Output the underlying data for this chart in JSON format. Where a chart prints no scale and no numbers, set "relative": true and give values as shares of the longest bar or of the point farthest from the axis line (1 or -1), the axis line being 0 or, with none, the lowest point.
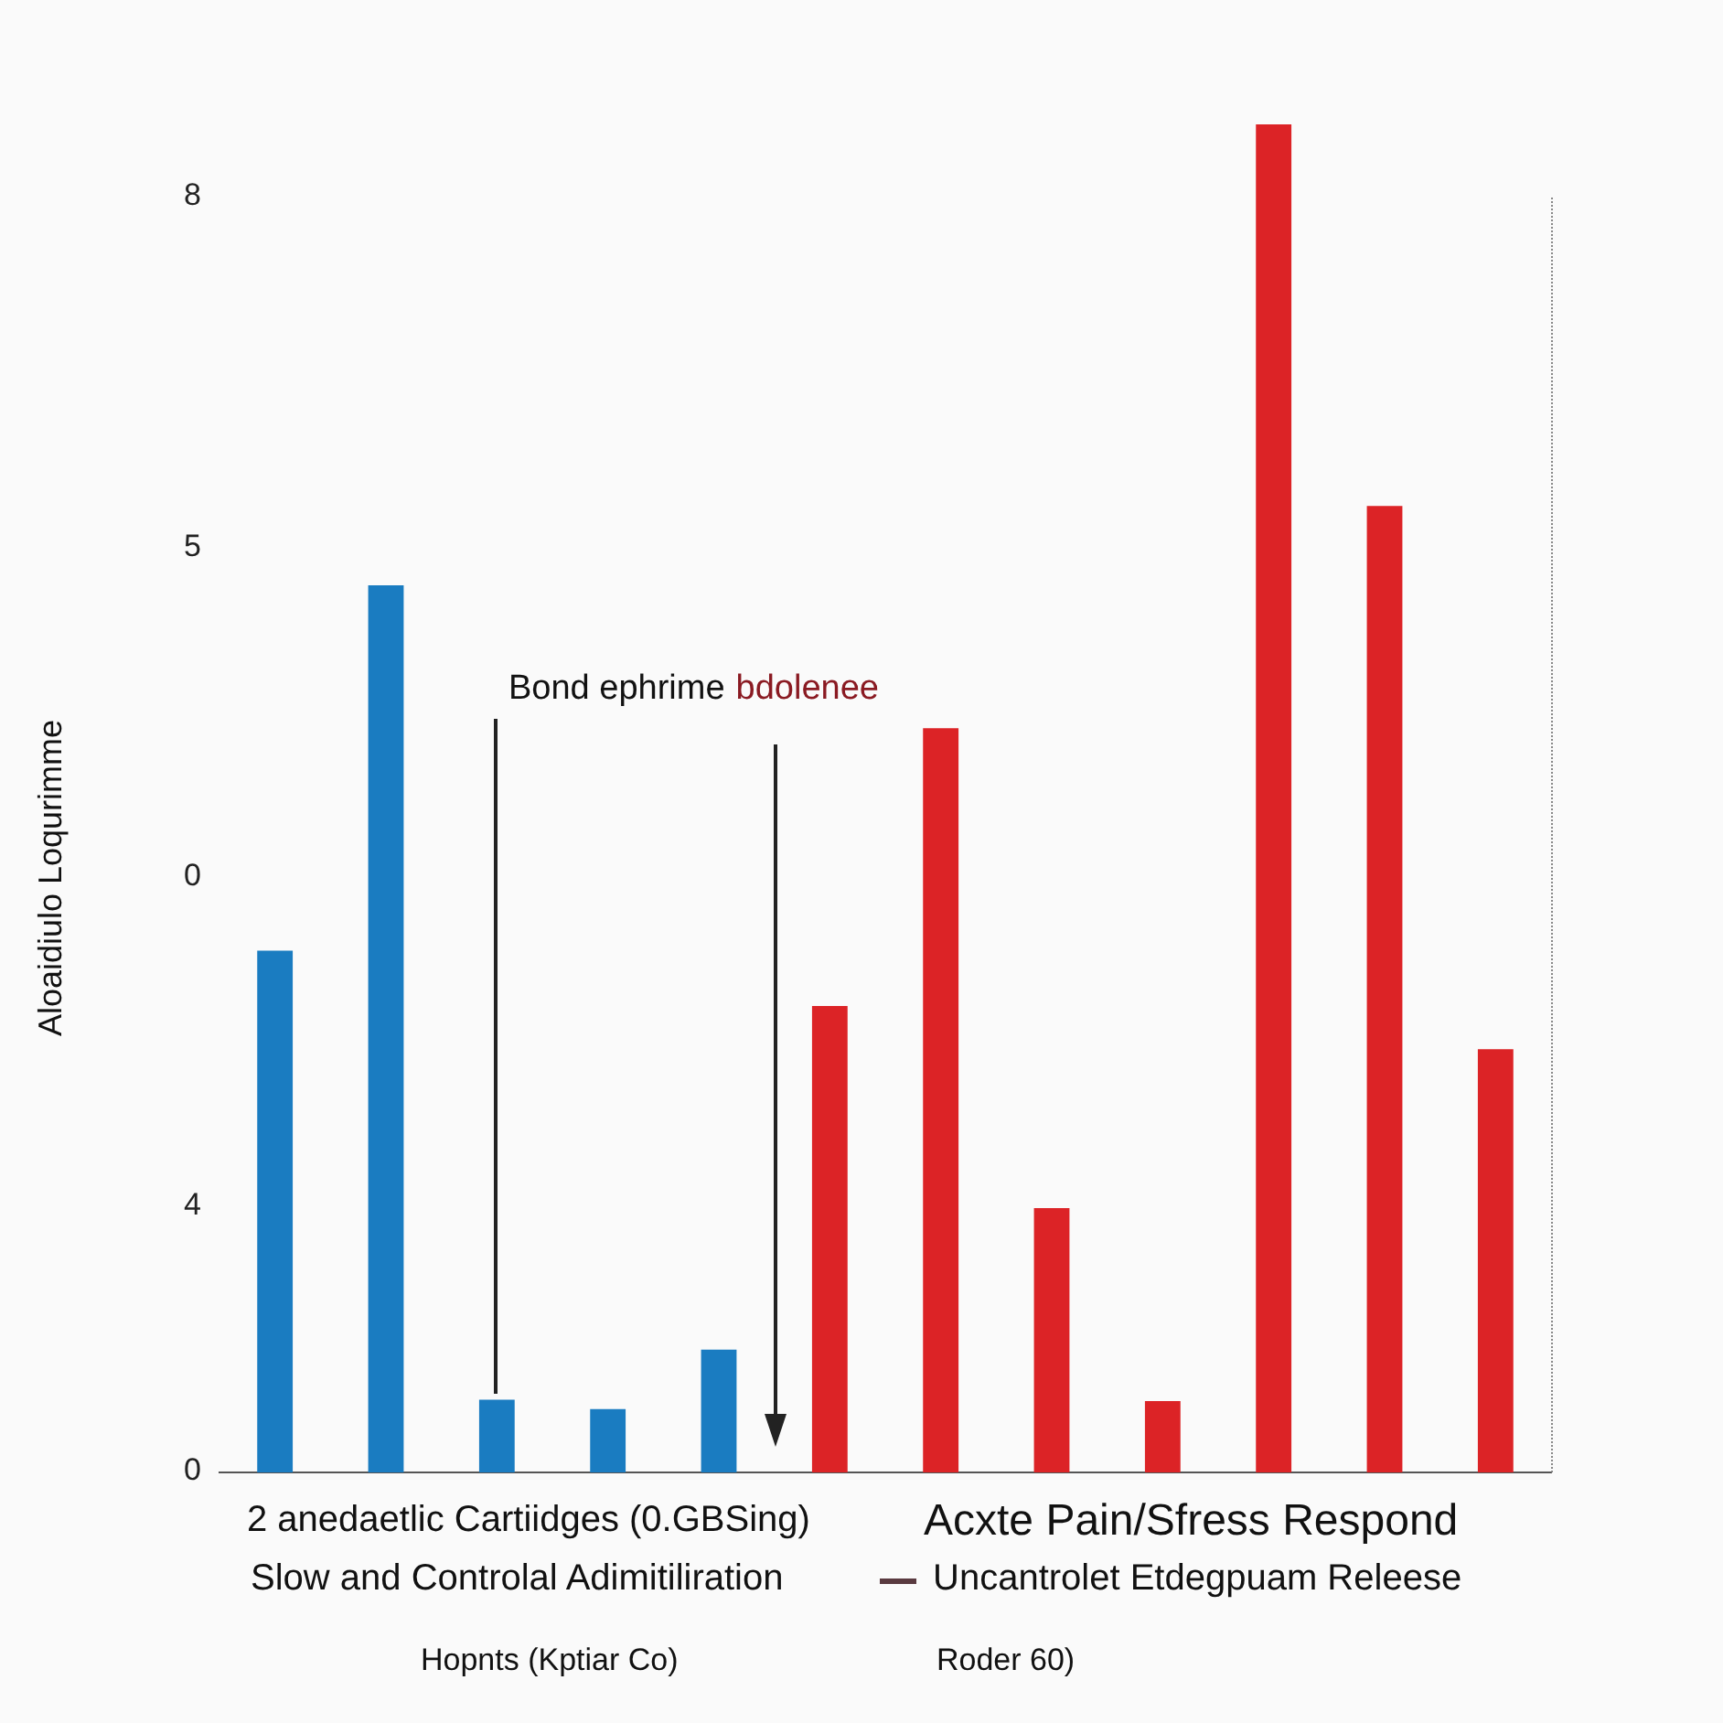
{
  "chart_data": {
    "type": "bar",
    "ylabel": "Aloaidiulo Loqurimme",
    "relative": true,
    "categories": [
      null,
      null,
      null,
      null,
      null,
      null,
      null,
      null,
      null,
      null,
      null,
      null
    ],
    "values": [
      0.387,
      0.658,
      0.054,
      0.047,
      0.091,
      0.346,
      0.552,
      0.196,
      0.053,
      1,
      0.717,
      0.314
    ],
    "colors": [
      "#1a7cc1",
      "#1a7cc1",
      "#1a7cc1",
      "#1a7cc1",
      "#1a7cc1",
      "#dc2326",
      "#dc2326",
      "#dc2326",
      "#dc2326",
      "#dc2326",
      "#dc2326",
      "#dc2326"
    ],
    "annotations": [
      "8",
      "5",
      "0",
      "4",
      "0",
      "Bond ephrime",
      "bdolenee",
      "2 anedaetlic Cartiidges (0.GBSing)",
      "Slow and Controlal Adimitiliration",
      "Hopnts (Kptiar Co)",
      "Acxte Pain/Sfress Respond",
      "Uncantrolet Etdegpuam Releese",
      "Roder 60)"
    ]
  }
}
